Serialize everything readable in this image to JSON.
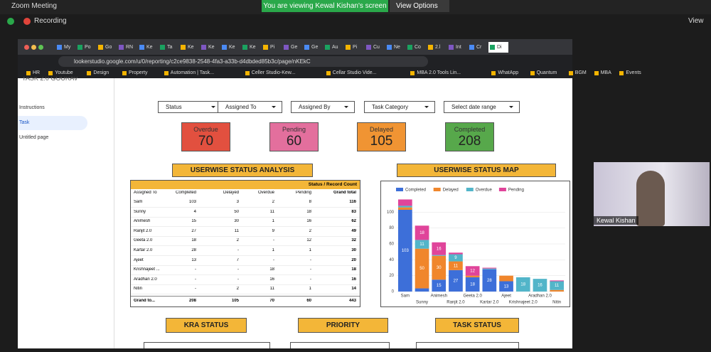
{
  "zoom": {
    "title": "Zoom Meeting",
    "banner": "You are viewing Kewal Kishan's screen",
    "view_options": "View Options",
    "recording": "Recording",
    "view": "View",
    "participant": "Kewal Kishan"
  },
  "browser": {
    "tabs": [
      "My",
      "Po",
      "Go",
      "RN",
      "Ke",
      "Ta",
      "Ke",
      "Ke",
      "Ke",
      "Ke",
      "Pi",
      "Ge",
      "Ge",
      "Au",
      "Pi",
      "Cu",
      "Ne",
      "Co",
      "2.l",
      "Int",
      "Cr",
      "Di"
    ],
    "url": "lookerstudio.google.com/u/0/reporting/c2ce9838-2548-4fa3-a33b-d4dbded85b3c/page/nKEkC",
    "bookmarks": [
      "HR",
      "Youtube",
      "Design",
      "Property",
      "Automation | Task...",
      "Celler Studio-Kew...",
      "Cellar Studio Vide...",
      "MBA 2.0 Tools Lin...",
      "WhatApp",
      "Quantum",
      "BGM",
      "MBA",
      "Events"
    ]
  },
  "report": {
    "header": "TASK 2.0 GOURAV",
    "pages": [
      "Instructions",
      "Task",
      "Untitled page"
    ],
    "filters": [
      "Status",
      "Assigned To",
      "Assigned By",
      "Task Category",
      "Select date range"
    ],
    "kpis": [
      {
        "label": "Overdue",
        "value": "70"
      },
      {
        "label": "Pending",
        "value": "60"
      },
      {
        "label": "Delayed",
        "value": "105"
      },
      {
        "label": "Completed",
        "value": "208"
      }
    ],
    "sections": [
      "USERWISE STATUS ANALYSIS",
      "USERWISE STATUS MAP",
      "KRA STATUS",
      "PRIORITY",
      "TASK STATUS"
    ],
    "table": {
      "caption": "Status / Record Count",
      "columns": [
        "Assigned To",
        "Completed",
        "Delayed",
        "Overdue",
        "Pending",
        "Grand total"
      ],
      "rows": [
        [
          "Sam",
          "103",
          "3",
          "2",
          "8",
          "116"
        ],
        [
          "Sunny",
          "4",
          "50",
          "11",
          "18",
          "83"
        ],
        [
          "Animesh",
          "15",
          "30",
          "1",
          "16",
          "62"
        ],
        [
          "Ranjit 2.0",
          "27",
          "11",
          "9",
          "2",
          "49"
        ],
        [
          "Geeta 2.0",
          "18",
          "2",
          "-",
          "12",
          "32"
        ],
        [
          "Kartar 2.0",
          "28",
          "-",
          "1",
          "1",
          "30"
        ],
        [
          "Ajeet",
          "13",
          "7",
          "-",
          "-",
          "20"
        ],
        [
          "Krishnajeet ...",
          "-",
          "-",
          "18",
          "-",
          "18"
        ],
        [
          "Aradhan 2.0",
          "-",
          "-",
          "16",
          "-",
          "16"
        ],
        [
          "Nitin",
          "-",
          "2",
          "11",
          "1",
          "14"
        ],
        [
          "Grand to...",
          "208",
          "105",
          "70",
          "60",
          "443"
        ]
      ]
    },
    "chart_data": {
      "type": "stacked_bar",
      "categories": [
        "Sam",
        "Sunny",
        "Animesh",
        "Ranjit 2.0",
        "Geeta 2.0",
        "Kartar 2.0",
        "Ajeet",
        "Krishnajeet 2.0",
        "Aradhan 2.0",
        "Nitin"
      ],
      "series": [
        {
          "name": "Completed",
          "color": "#3d6fd9",
          "values": [
            103,
            4,
            15,
            27,
            18,
            28,
            13,
            null,
            null,
            null
          ]
        },
        {
          "name": "Delayed",
          "color": "#f0862c",
          "values": [
            3,
            50,
            30,
            11,
            2,
            null,
            7,
            null,
            null,
            2
          ]
        },
        {
          "name": "Overdue",
          "color": "#52b5c9",
          "values": [
            2,
            11,
            1,
            9,
            null,
            1,
            null,
            18,
            16,
            11
          ]
        },
        {
          "name": "Pending",
          "color": "#e0449a",
          "values": [
            8,
            18,
            16,
            2,
            12,
            1,
            null,
            null,
            null,
            1
          ]
        }
      ],
      "ylim": [
        0,
        120
      ],
      "yticks": [
        0,
        20,
        40,
        60,
        80,
        100
      ],
      "grid": true,
      "legend": "top"
    }
  }
}
